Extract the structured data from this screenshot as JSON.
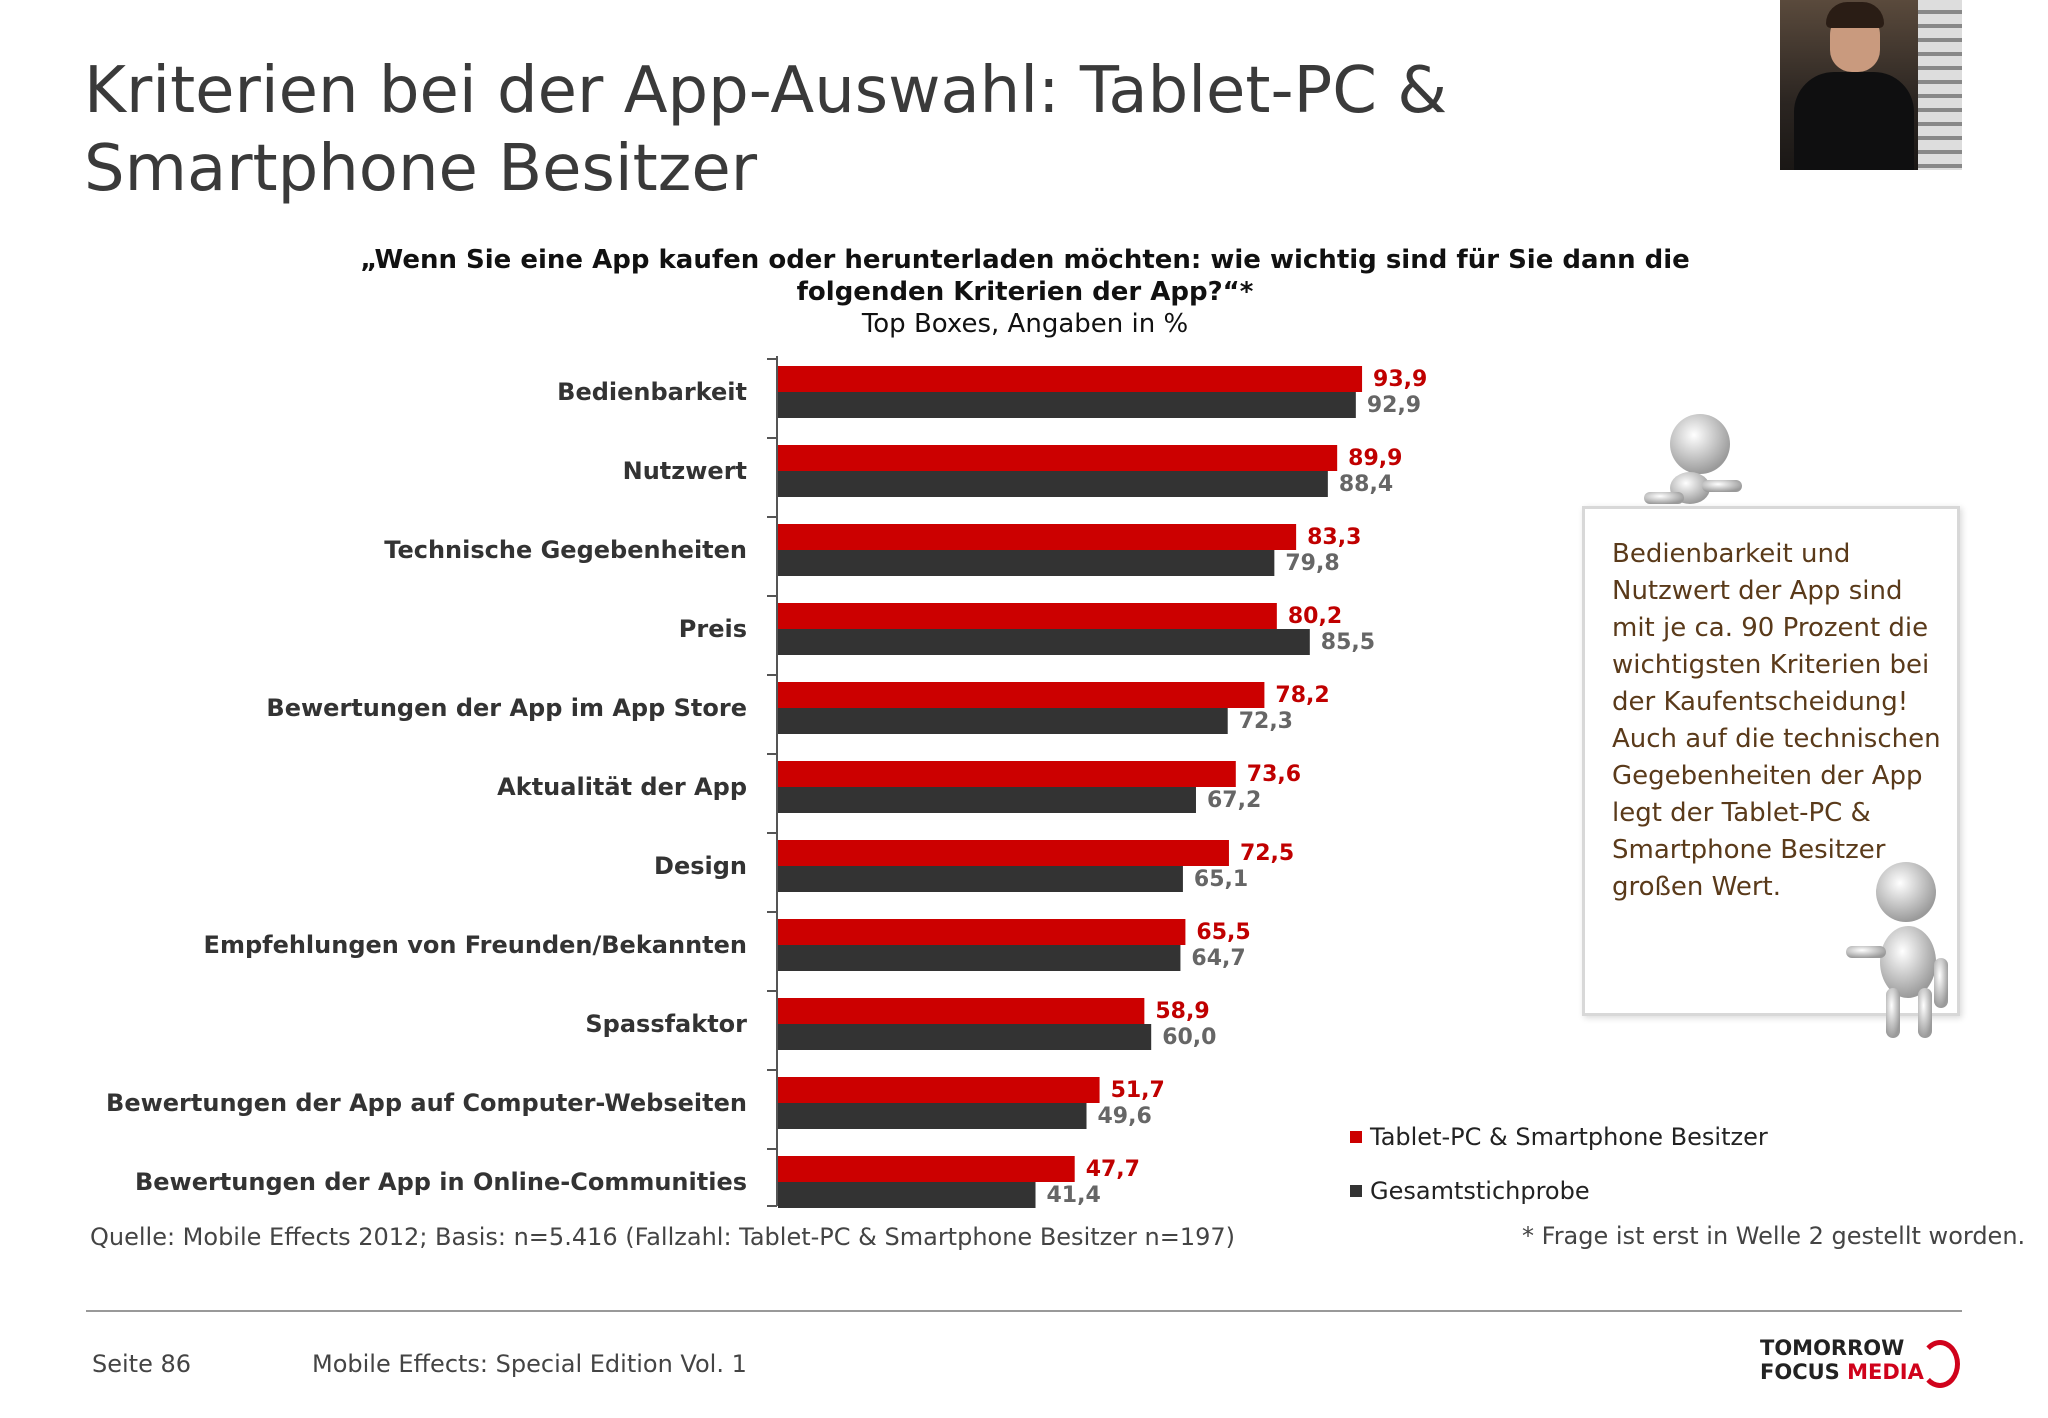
{
  "page": {
    "title": "Kriterien bei der App-Auswahl: Tablet-PC & Smartphone Besitzer",
    "question": "„Wenn Sie eine App kaufen oder herunterladen möchten: wie wichtig sind für Sie dann die folgenden Kriterien der App?“*",
    "subtitle": "Top Boxes, Angaben in %",
    "callout": "Bedienbarkeit und Nutzwert der App sind mit je ca. 90 Prozent die wichtigsten Kriterien bei der Kaufentscheidung! Auch auf die technischen Gegebenheiten der App legt der Tablet-PC & Smartphone Besitzer großen Wert.",
    "source": "Quelle: Mobile Effects 2012; Basis: n=5.416 (Fallzahl: Tablet-PC & Smartphone Besitzer n=197)",
    "footnote": "* Frage ist erst in Welle 2 gestellt worden.",
    "page_number": "Seite 86",
    "edition": "Mobile Effects: Special Edition Vol. 1",
    "logo_line1": "TOMORROW",
    "logo_line2_a": "FOCUS",
    "logo_line2_b": "MEDIA"
  },
  "colors": {
    "tablet": "#cc0000",
    "total": "#333333",
    "tablet_label": "#c00000",
    "total_label": "#666666"
  },
  "chart_data": {
    "type": "bar",
    "orientation": "horizontal",
    "categories": [
      "Bedienbarkeit",
      "Nutzwert",
      "Technische Gegebenheiten",
      "Preis",
      "Bewertungen der App im App Store",
      "Aktualität der App",
      "Design",
      "Empfehlungen von Freunden/Bekannten",
      "Spassfaktor",
      "Bewertungen der App auf Computer-Webseiten",
      "Bewertungen der App in Online-Communities"
    ],
    "series": [
      {
        "name": "Tablet-PC & Smartphone Besitzer",
        "values": [
          93.9,
          89.9,
          83.3,
          80.2,
          78.2,
          73.6,
          72.5,
          65.5,
          58.9,
          51.7,
          47.7
        ],
        "labels": [
          "93,9",
          "89,9",
          "83,3",
          "80,2",
          "78,2",
          "73,6",
          "72,5",
          "65,5",
          "58,9",
          "51,7",
          "47,7"
        ]
      },
      {
        "name": "Gesamtstichprobe",
        "values": [
          92.9,
          88.4,
          79.8,
          85.5,
          72.3,
          67.2,
          65.1,
          64.7,
          60.0,
          49.6,
          41.4
        ],
        "labels": [
          "92,9",
          "88,4",
          "79,8",
          "85,5",
          "72,3",
          "67,2",
          "65,1",
          "64,7",
          "60,0",
          "49,6",
          "41,4"
        ]
      }
    ],
    "xlim": [
      0,
      100
    ],
    "legend_position": "bottom-right",
    "grid": false
  }
}
